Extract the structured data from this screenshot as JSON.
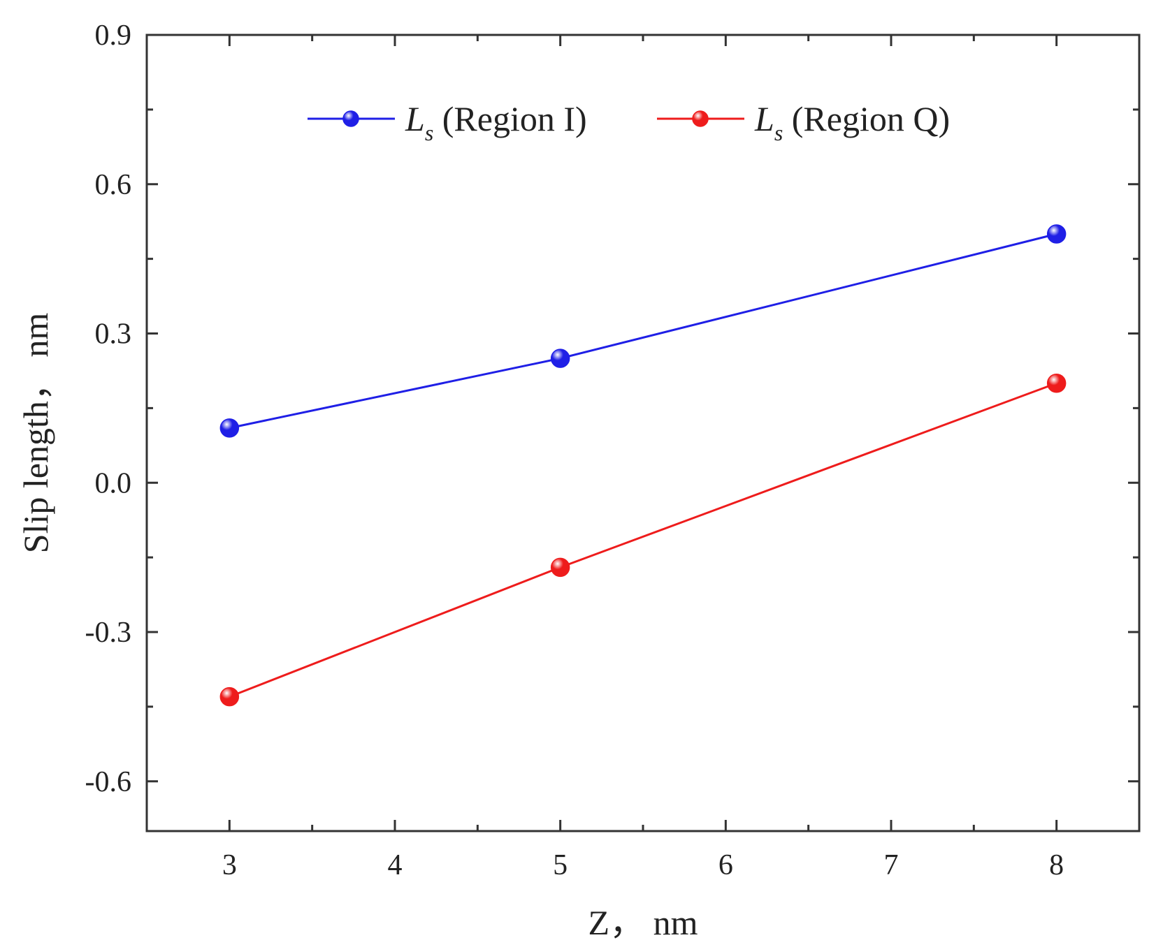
{
  "chart_data": {
    "type": "line",
    "title": "",
    "xlabel": "Z， nm",
    "ylabel": "Slip length， nm",
    "xlim": [
      2.5,
      8.5
    ],
    "ylim": [
      -0.7,
      0.9
    ],
    "xticks": [
      3,
      4,
      5,
      6,
      7,
      8
    ],
    "yticks": [
      -0.6,
      -0.3,
      0.0,
      0.3,
      0.6,
      0.9
    ],
    "xtick_labels": [
      "3",
      "4",
      "5",
      "6",
      "7",
      "8"
    ],
    "ytick_labels": [
      "-0.6",
      "-0.3",
      "0.0",
      "0.3",
      "0.6",
      "0.9"
    ],
    "grid": false,
    "legend_position": "top",
    "series": [
      {
        "name_symbol": "L",
        "name_subscript": "s",
        "name_rest": " (Region I)",
        "color": "#1f1fe6",
        "x": [
          3,
          5,
          8
        ],
        "y": [
          0.11,
          0.25,
          0.5
        ]
      },
      {
        "name_symbol": "L",
        "name_subscript": "s",
        "name_rest": " (Region Q)",
        "color": "#ee1c1c",
        "x": [
          3,
          5,
          8
        ],
        "y": [
          -0.43,
          -0.17,
          0.2
        ]
      }
    ]
  }
}
